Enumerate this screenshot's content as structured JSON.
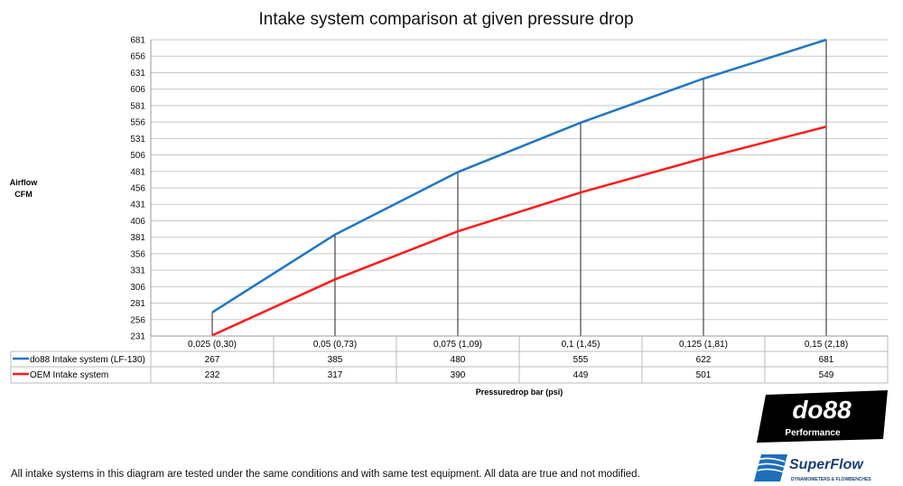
{
  "chart_data": {
    "type": "line",
    "title": "Intake system comparison at given pressure drop",
    "ylabel": "Airflow CFM",
    "ylabel_lines": [
      "Airflow",
      "CFM"
    ],
    "xlabel": "Pressuredrop bar (psi)",
    "ylim": [
      231,
      681
    ],
    "yticks": [
      231,
      256,
      281,
      306,
      331,
      356,
      381,
      406,
      431,
      456,
      481,
      506,
      531,
      556,
      581,
      606,
      631,
      656,
      681
    ],
    "grid": true,
    "legend": "data-table-left",
    "categories": [
      "0,025 (0,30)",
      "0,05 (0,73)",
      "0,075 (1,09)",
      "0,1 (1,45)",
      "0,125 (1,81)",
      "0,15 (2,18)"
    ],
    "series": [
      {
        "name": "do88 Intake system (LF-130)",
        "color": "#1f77c4",
        "values": [
          267,
          385,
          480,
          555,
          622,
          681
        ]
      },
      {
        "name": "OEM Intake system",
        "color": "#ff1a1a",
        "values": [
          232,
          317,
          390,
          449,
          501,
          549
        ]
      }
    ]
  },
  "footer": "All intake systems in this diagram are tested under the same conditions and with same test equipment. All data are true and not modified.",
  "logos": {
    "do88": "do88",
    "do88_sub": "Performance",
    "superflow": "SuperFlow",
    "superflow_sub": "DYNAMOMETERS & FLOWBENCHES"
  }
}
